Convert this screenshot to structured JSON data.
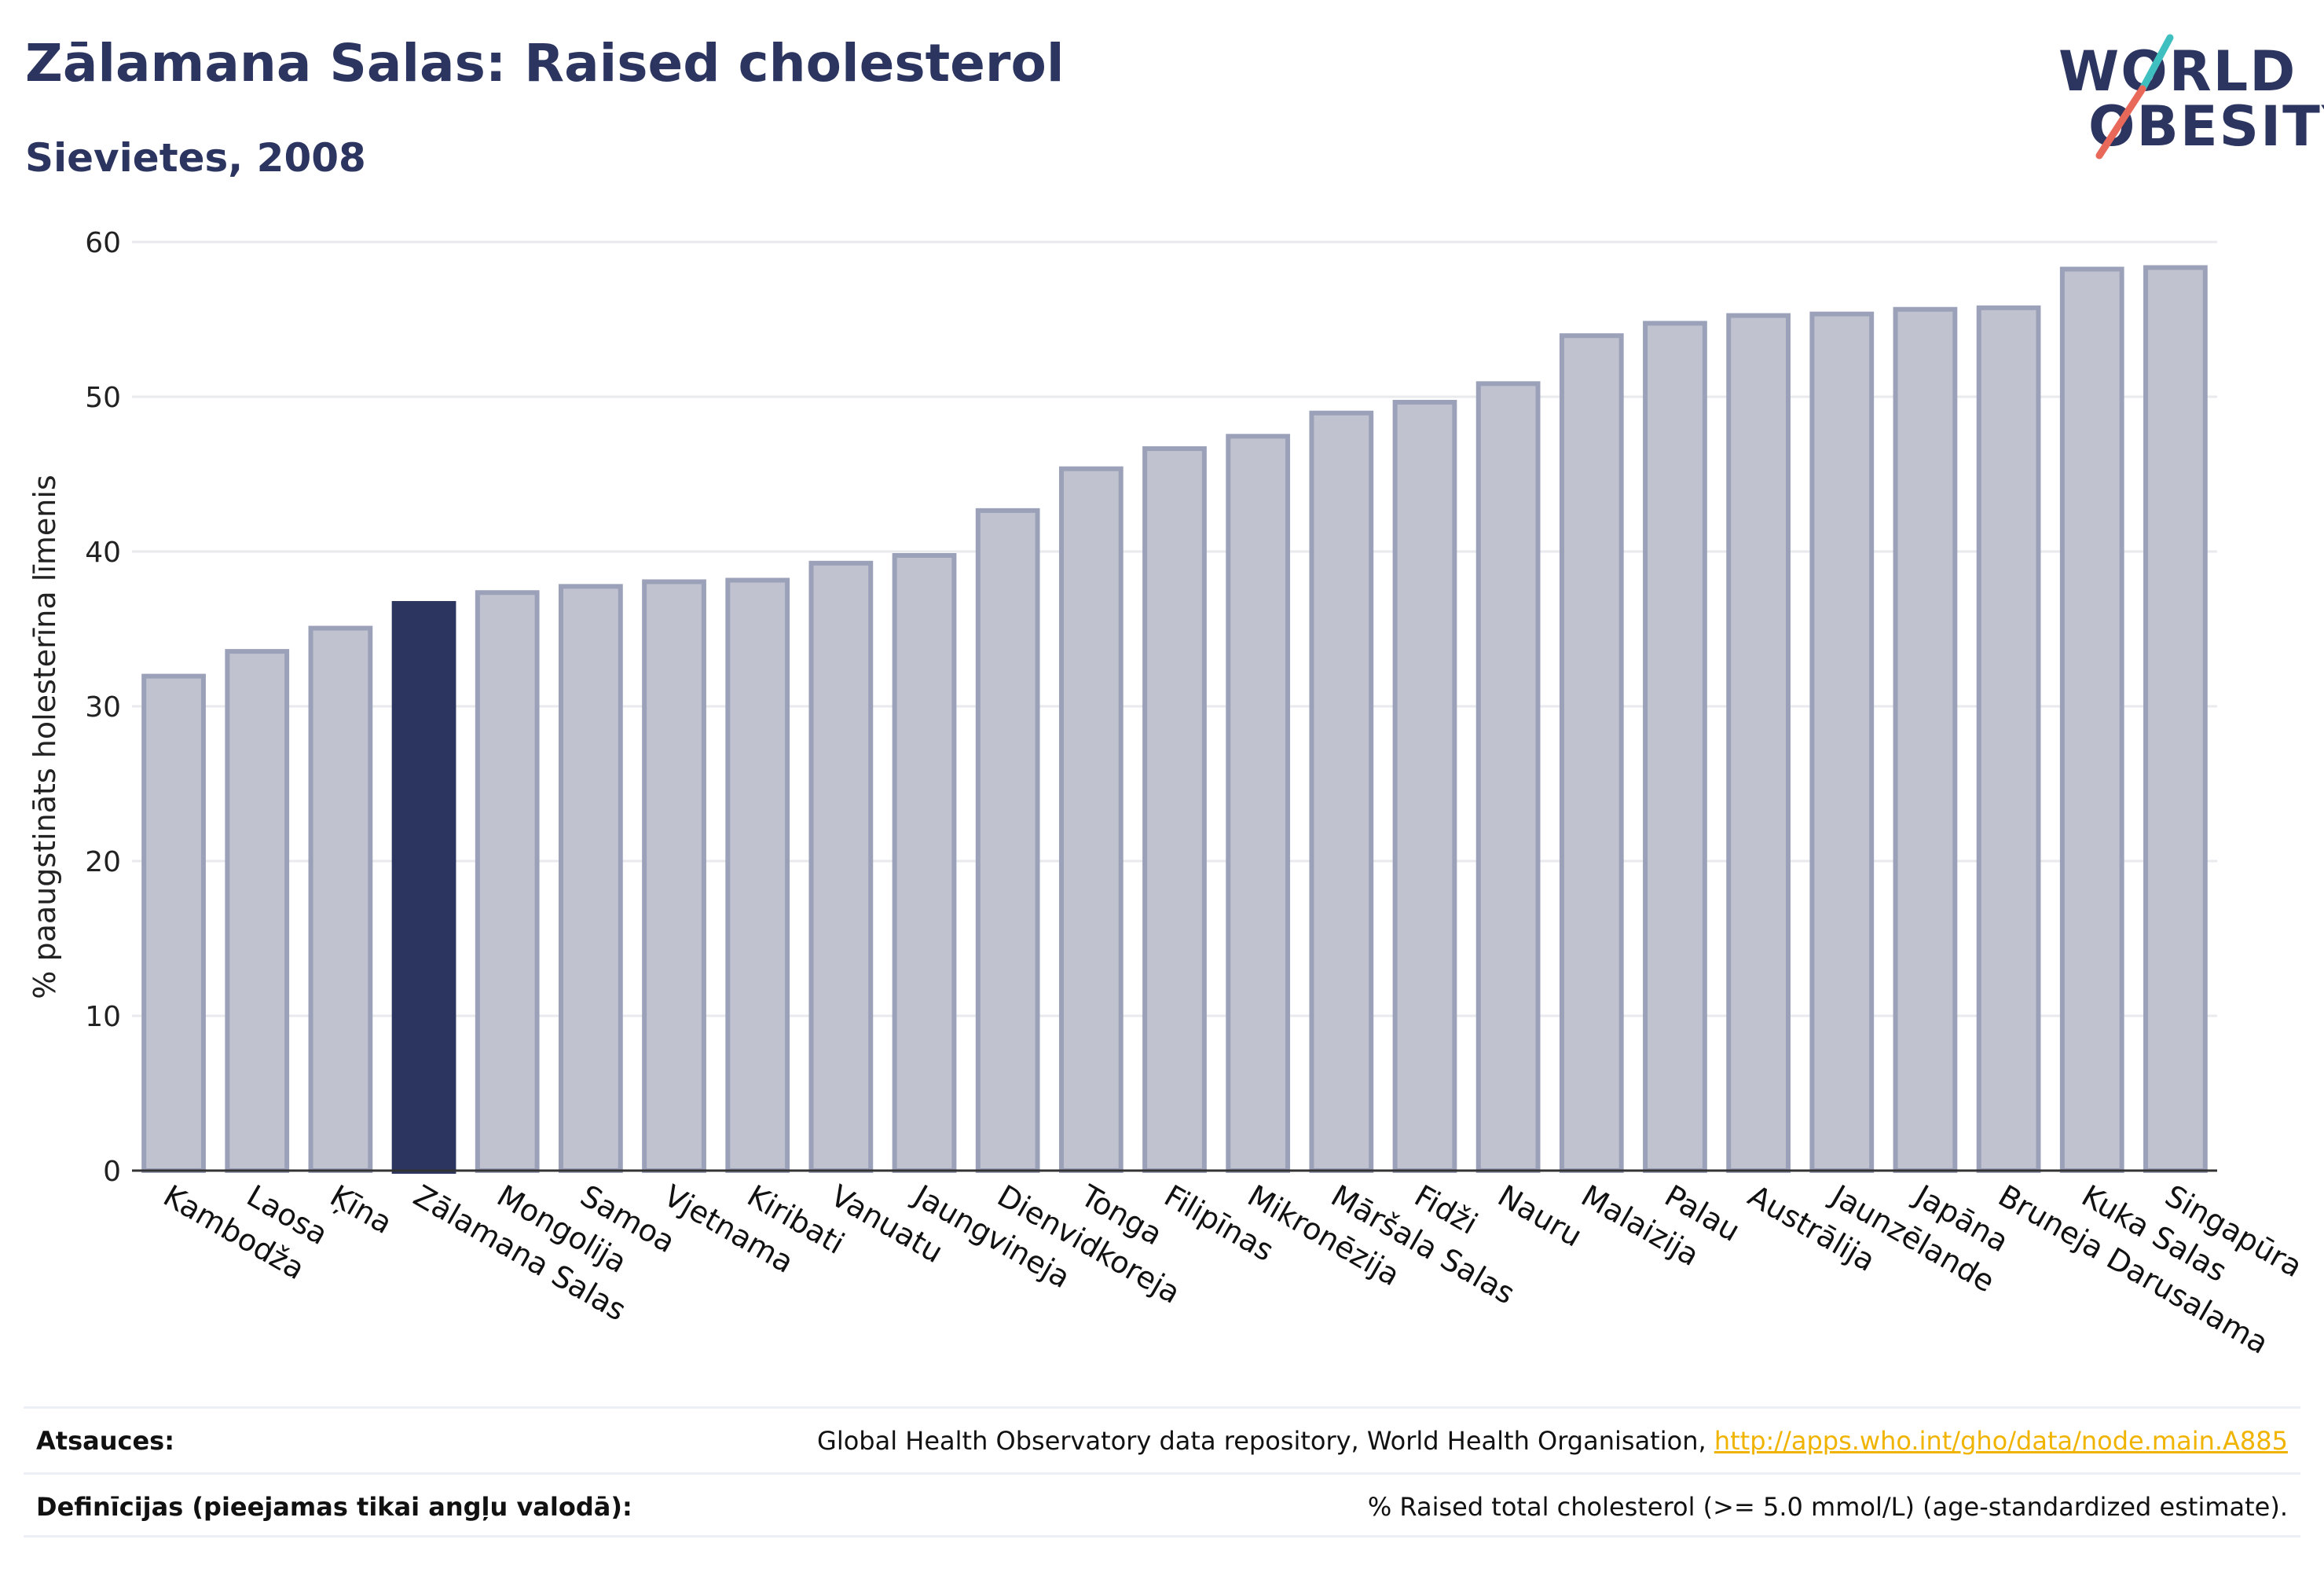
{
  "header": {
    "title": "Zālamana Salas: Raised cholesterol",
    "subtitle": "Sievietes, 2008"
  },
  "logo": {
    "line1": "WORLD",
    "line2": "OBESITY"
  },
  "chart_data": {
    "type": "bar",
    "ylabel": "% paaugstināts holesterīna līmenis",
    "xlabel": "",
    "ylim": [
      0,
      60
    ],
    "yticks": [
      0,
      10,
      20,
      30,
      40,
      50,
      60
    ],
    "grid": true,
    "highlight": "Zālamana Salas",
    "categories": [
      "Kambodža",
      "Laosa",
      "Ķīna",
      "Zālamana Salas",
      "Mongolija",
      "Samoa",
      "Vjetnama",
      "Kiribati",
      "Vanuatu",
      "Jaungvineja",
      "Dienvidkoreja",
      "Tonga",
      "Filipīnas",
      "Mikronēzija",
      "Māršala Salas",
      "Fidži",
      "Nauru",
      "Malaizija",
      "Palau",
      "Austrālija",
      "Jaunzēlande",
      "Japāna",
      "Bruneja Darusalama",
      "Kuka Salas",
      "Singapūra"
    ],
    "values": [
      32.1,
      33.7,
      35.2,
      36.8,
      37.5,
      37.9,
      38.2,
      38.3,
      39.4,
      39.9,
      42.8,
      45.5,
      46.8,
      47.6,
      49.1,
      49.8,
      51.0,
      54.1,
      54.9,
      55.4,
      55.5,
      55.8,
      55.9,
      58.4,
      58.5
    ],
    "colors": {
      "bar": "#c0c3cf",
      "bar_edge": "#9ba1b8",
      "highlight": "#2c3560",
      "axis": "#333333",
      "grid": "#e9eaee"
    }
  },
  "footer": {
    "sources_label": "Atsauces:",
    "sources_text": "Global Health Observatory data repository, World Health Organisation, ",
    "sources_link": "http://apps.who.int/gho/data/node.main.A885",
    "definitions_label": "Definīcijas (pieejamas tikai angļu valodā):",
    "definitions_text": "% Raised total cholesterol (>= 5.0 mmol/L) (age-standardized estimate)."
  }
}
